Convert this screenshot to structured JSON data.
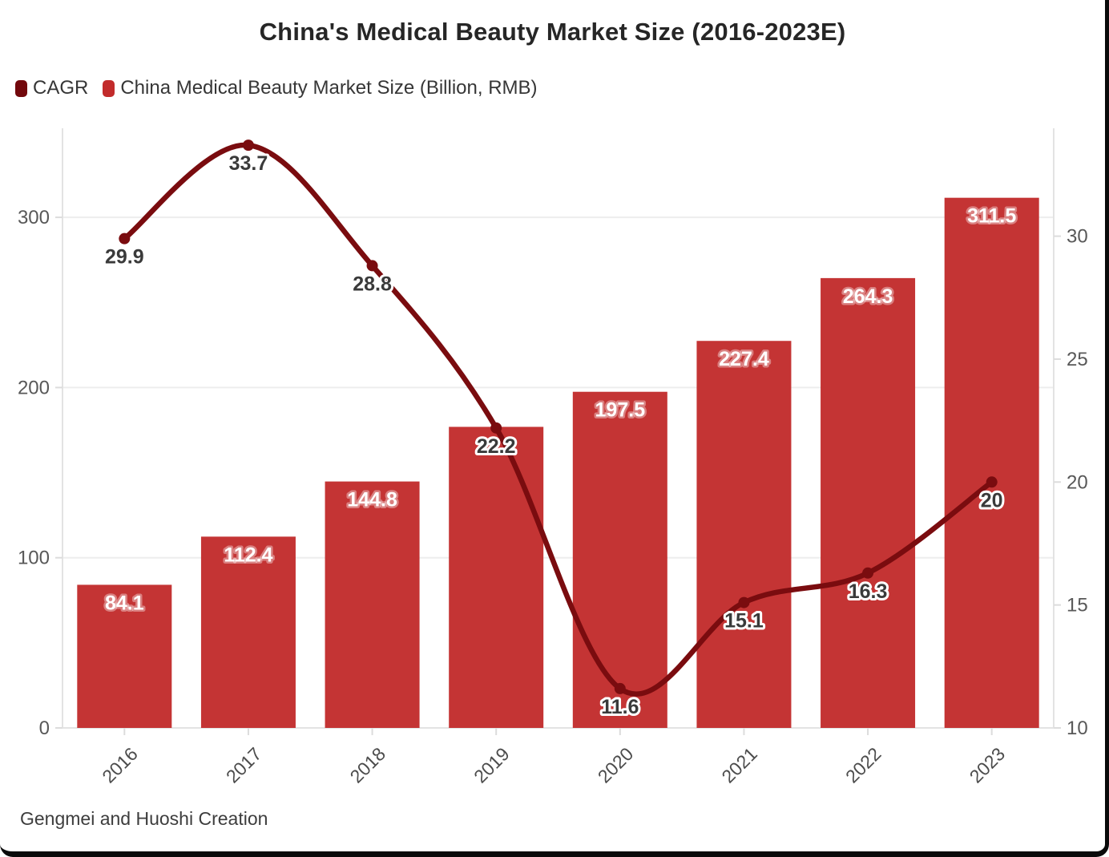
{
  "title": "China's Medical Beauty Market Size (2016-2023E)",
  "source": "Gengmei and Huoshi Creation",
  "legend": [
    {
      "label": "CAGR",
      "color": "#72080c"
    },
    {
      "label": "China Medical Beauty Market Size (Billion, RMB)",
      "color": "#c22b2b"
    }
  ],
  "colors": {
    "bar": "#c43434",
    "line": "#7a0c0f",
    "grid": "#ededed",
    "axis": "#e3e3e3",
    "tick": "#dcdcdc",
    "tick_label": "#585858",
    "bar_label": "#ffffff",
    "point_label": "#3a3a3a",
    "title": "#262626",
    "frame_border": "#0a0a0a"
  },
  "chart_data": {
    "type": "combo (bar + smooth line, dual y-axis)",
    "title": "China's Medical Beauty Market Size (2016-2023E)",
    "categories": [
      "2016",
      "2017",
      "2018",
      "2019",
      "2020",
      "2021",
      "2022",
      "2023"
    ],
    "series": [
      {
        "name": "China Medical Beauty Market Size (Billion, RMB)",
        "type": "bar",
        "y_axis": "left",
        "color": "#c43434",
        "values": [
          84.1,
          112.4,
          144.8,
          176.9,
          197.5,
          227.4,
          264.3,
          311.5
        ],
        "value_labels": [
          "84.1",
          "112.4",
          "144.8",
          "",
          "197.5",
          "227.4",
          "264.3",
          "311.5"
        ]
      },
      {
        "name": "CAGR",
        "type": "line",
        "smooth": true,
        "y_axis": "right",
        "color": "#7a0c0f",
        "values": [
          29.9,
          33.7,
          28.8,
          22.2,
          11.6,
          15.1,
          16.3,
          20
        ],
        "value_labels": [
          "29.9",
          "33.7",
          "28.8",
          "22.2",
          "11.6",
          "15.1",
          "16.3",
          "20"
        ]
      }
    ],
    "left_axis": {
      "ticks": [
        0,
        100,
        200,
        300
      ],
      "tick_labels": [
        "0",
        "100",
        "200",
        "300"
      ],
      "range": [
        0,
        352
      ]
    },
    "right_axis": {
      "ticks": [
        10,
        15,
        20,
        25,
        30
      ],
      "tick_labels": [
        "10",
        "15",
        "20",
        "25",
        "30"
      ],
      "range": [
        10,
        34.4
      ]
    },
    "grid": true,
    "legend_position": "top-left"
  }
}
